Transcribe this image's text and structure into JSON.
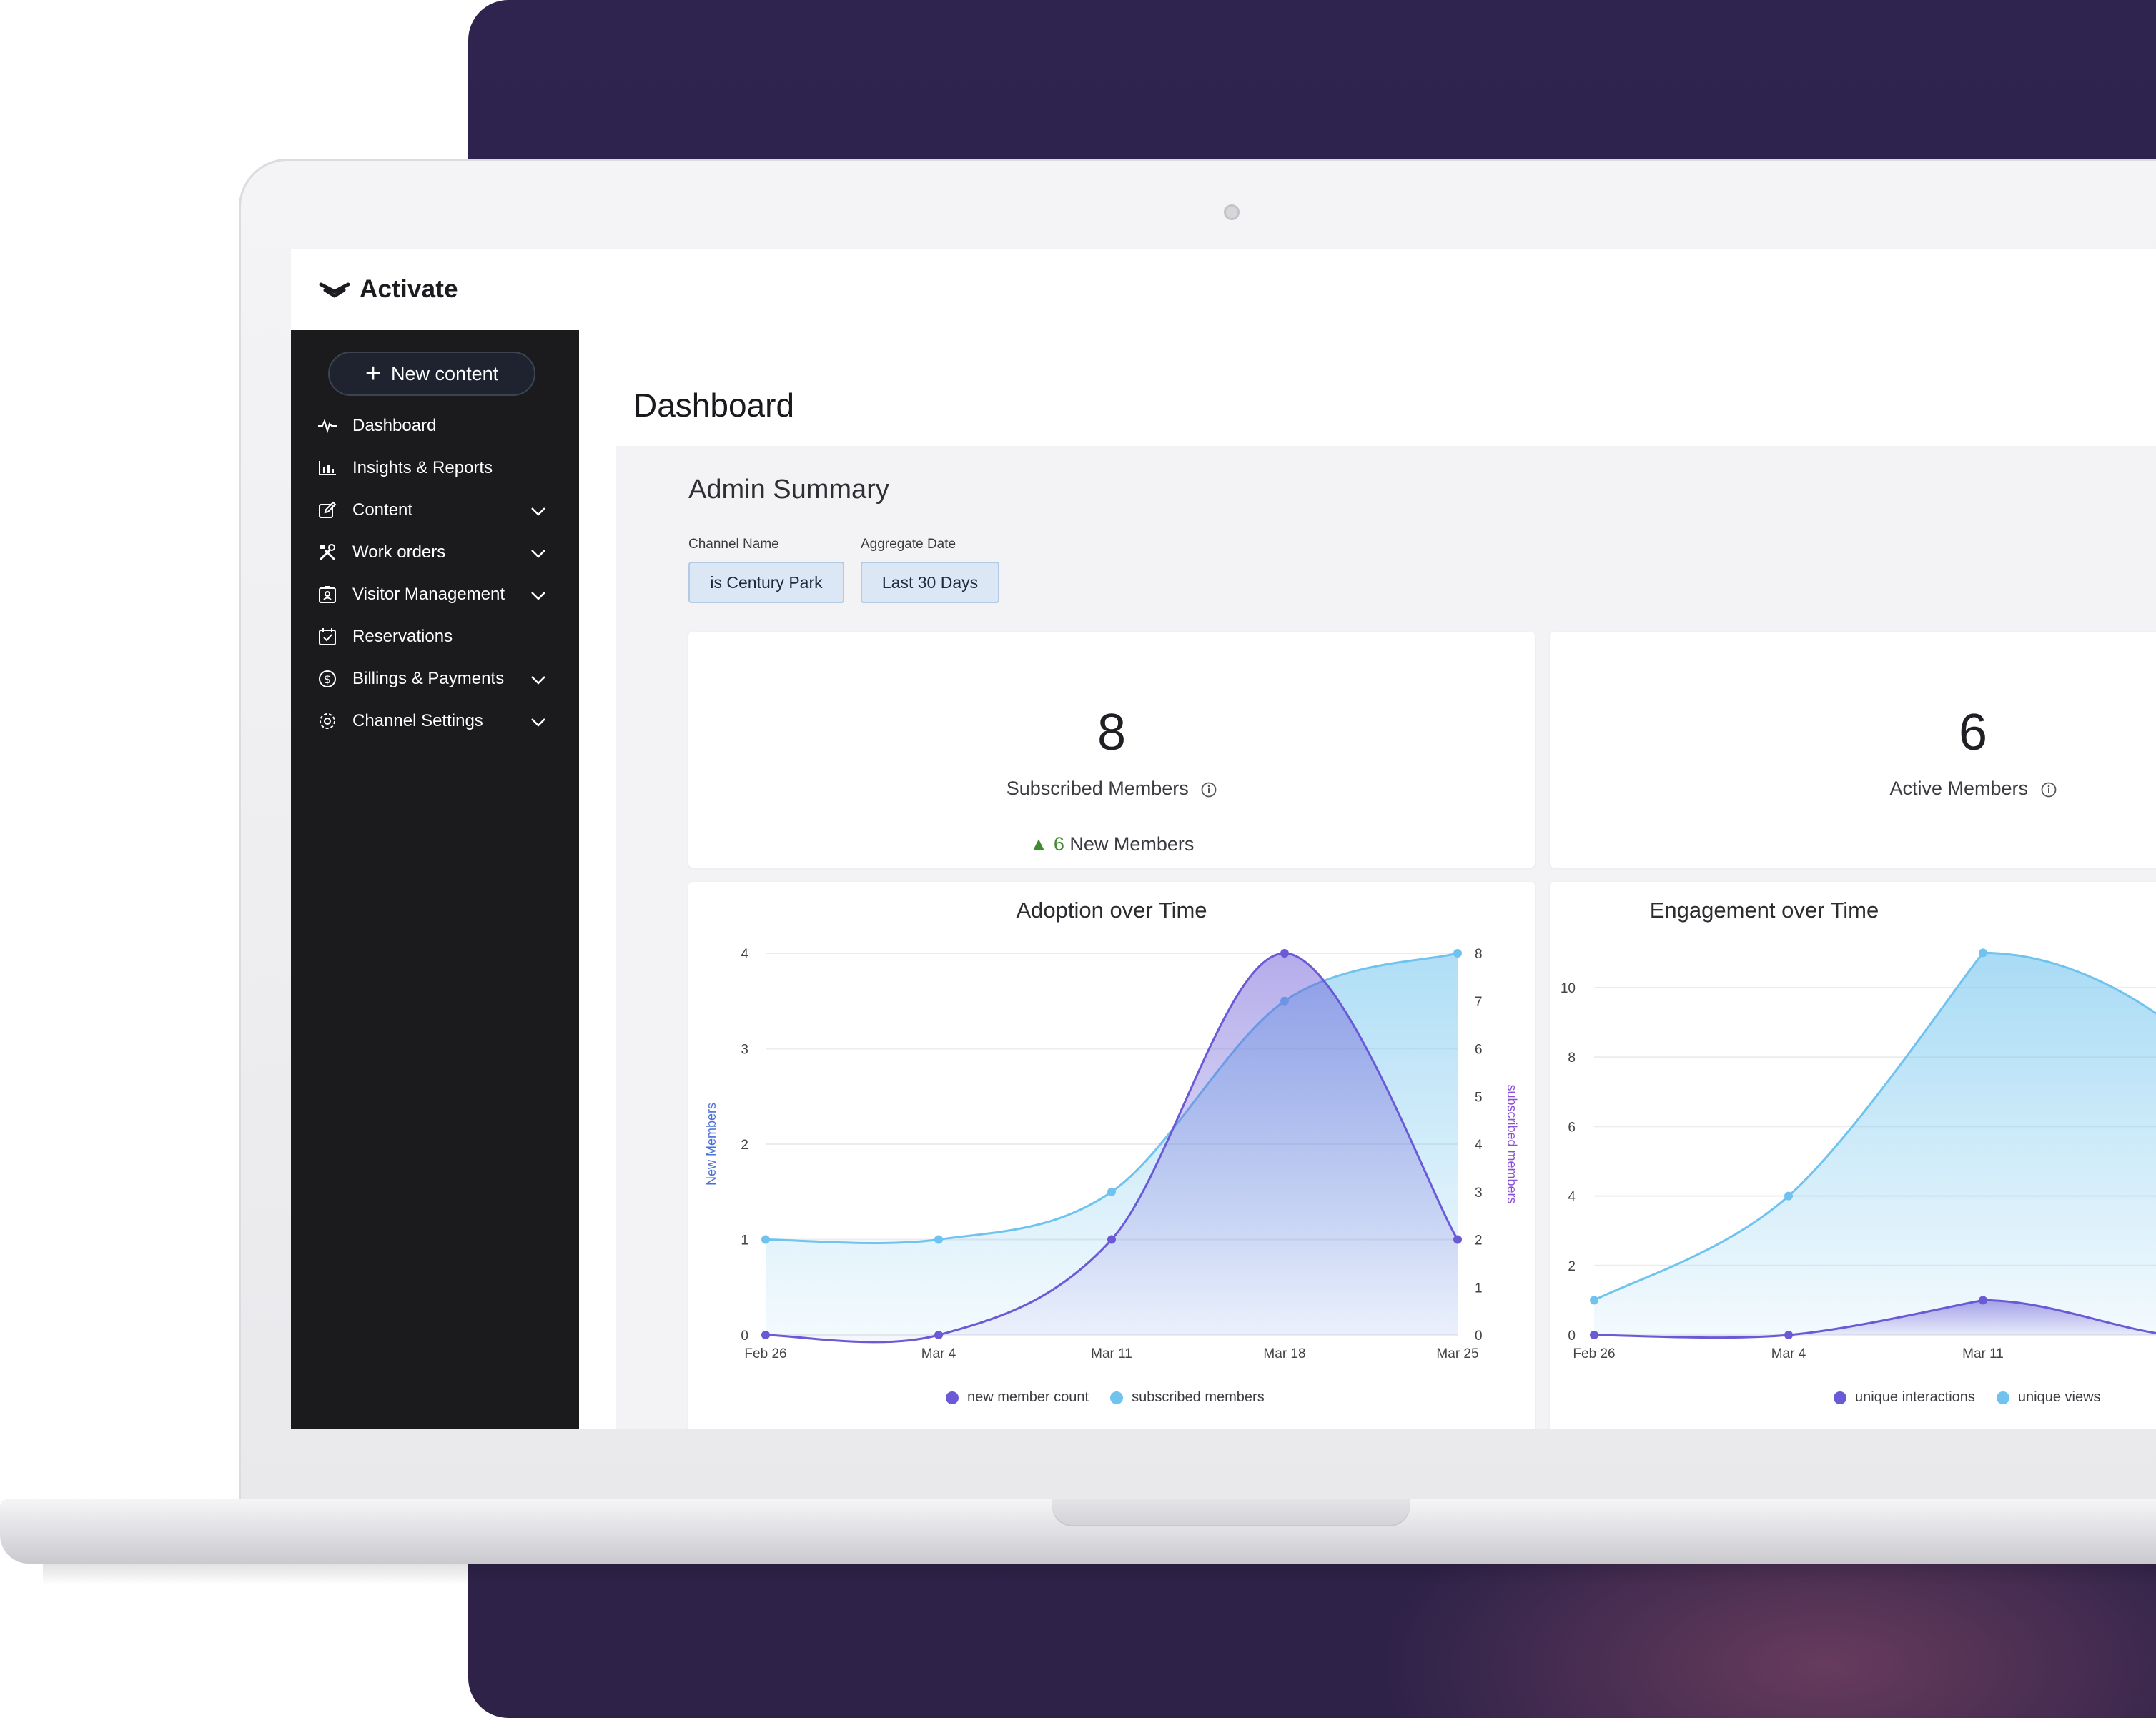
{
  "app": {
    "name": "Activate"
  },
  "sidebar": {
    "new_content": "New content",
    "items": [
      {
        "label": "Dashboard",
        "icon": "pulse-icon",
        "chevron": false
      },
      {
        "label": "Insights & Reports",
        "icon": "bar-chart-icon",
        "chevron": false
      },
      {
        "label": "Content",
        "icon": "edit-icon",
        "chevron": true
      },
      {
        "label": "Work orders",
        "icon": "tools-icon",
        "chevron": true
      },
      {
        "label": "Visitor Management",
        "icon": "id-badge-icon",
        "chevron": true
      },
      {
        "label": "Reservations",
        "icon": "calendar-check-icon",
        "chevron": false
      },
      {
        "label": "Billings & Payments",
        "icon": "dollar-circle-icon",
        "chevron": true
      },
      {
        "label": "Channel Settings",
        "icon": "gear-icon",
        "chevron": true
      }
    ]
  },
  "main": {
    "title": "Dashboard",
    "summary_title": "Admin Summary",
    "filters": [
      {
        "label": "Channel Name",
        "value": "is Century Park"
      },
      {
        "label": "Aggregate Date",
        "value": "Last 30 Days"
      }
    ],
    "stats": [
      {
        "value": "8",
        "label": "Subscribed Members",
        "delta_value": "6",
        "delta_text": "New Members"
      },
      {
        "value": "6",
        "label": "Active Members"
      }
    ]
  },
  "colors": {
    "primary_series": "#6a5ad6",
    "secondary_series": "#6fc3ee",
    "sidebar_bg": "#1b1b1d",
    "delta_up": "#3f8b2f"
  },
  "chart_data": [
    {
      "type": "area",
      "title": "Adoption over Time",
      "categories": [
        "Feb 26",
        "Mar 4",
        "Mar 11",
        "Mar 18",
        "Mar 25"
      ],
      "ylabel": "New Members",
      "ylabel_right": "subscribed members",
      "ylim": [
        0,
        4
      ],
      "ylim_right": [
        0,
        8
      ],
      "yticks": [
        0,
        1,
        2,
        3,
        4
      ],
      "yticks_right": [
        0,
        1,
        2,
        3,
        4,
        5,
        6,
        7,
        8
      ],
      "series": [
        {
          "name": "new member count",
          "axis": "left",
          "values": [
            0,
            0,
            1,
            4,
            1
          ]
        },
        {
          "name": "subscribed members",
          "axis": "right",
          "values": [
            2,
            2,
            3,
            7,
            8
          ]
        }
      ]
    },
    {
      "type": "area",
      "title": "Engagement over Time",
      "categories": [
        "Feb 26",
        "Mar 4",
        "Mar 11"
      ],
      "ylim": [
        0,
        10
      ],
      "yticks": [
        0,
        2,
        4,
        6,
        8,
        10
      ],
      "series": [
        {
          "name": "unique interactions",
          "values": [
            0,
            0,
            1
          ]
        },
        {
          "name": "unique views",
          "values": [
            1,
            4,
            11
          ]
        }
      ]
    }
  ]
}
